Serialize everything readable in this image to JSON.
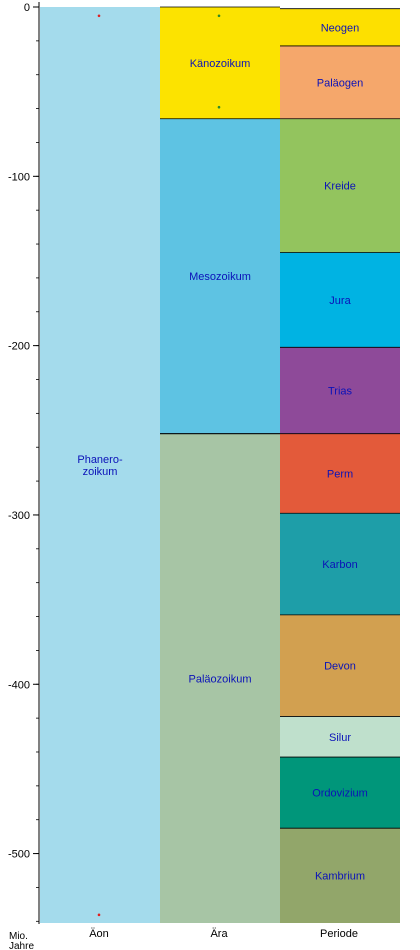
{
  "axis": {
    "ticks": [
      {
        "value": 0,
        "label": "0"
      },
      {
        "value": -100,
        "label": "-100"
      },
      {
        "value": -200,
        "label": "-200"
      },
      {
        "value": -300,
        "label": "-300"
      },
      {
        "value": -400,
        "label": "-400"
      },
      {
        "value": -500,
        "label": "-500"
      }
    ],
    "minor_step": 20,
    "unit_line1": "Mio.",
    "unit_line2": "Jahre",
    "max": 0,
    "min": -541
  },
  "columns": {
    "aeon": "Äon",
    "era": "Ära",
    "period": "Periode"
  },
  "aeons": [
    {
      "name_lines": [
        "Phanero-",
        "zoikum"
      ],
      "start": 0,
      "end": -541,
      "color": "#a4dbec"
    }
  ],
  "eras": [
    {
      "name": "Känozoikum",
      "start": 0,
      "end": -66,
      "color": "#fce300"
    },
    {
      "name": "Mesozoikum",
      "start": -66,
      "end": -252,
      "color": "#5ec3e3"
    },
    {
      "name": "Paläozoikum",
      "start": -252,
      "end": -541,
      "color": "#a7c5a5"
    }
  ],
  "periods": [
    {
      "name": "Neogen",
      "start": -1,
      "end": -23,
      "color": "#fde000"
    },
    {
      "name": "Paläogen",
      "start": -23,
      "end": -66,
      "color": "#f5a76b"
    },
    {
      "name": "Kreide",
      "start": -66,
      "end": -145,
      "color": "#93c45e"
    },
    {
      "name": "Jura",
      "start": -145,
      "end": -201,
      "color": "#00b3e3"
    },
    {
      "name": "Trias",
      "start": -201,
      "end": -252,
      "color": "#8e4a99"
    },
    {
      "name": "Perm",
      "start": -252,
      "end": -299,
      "color": "#e35a3a"
    },
    {
      "name": "Karbon",
      "start": -299,
      "end": -359,
      "color": "#1e9ea8"
    },
    {
      "name": "Devon",
      "start": -359,
      "end": -419,
      "color": "#d2a050"
    },
    {
      "name": "Silur",
      "start": -419,
      "end": -443,
      "color": "#bfe0cc"
    },
    {
      "name": "Ordovizium",
      "start": -443,
      "end": -485,
      "color": "#00967a"
    },
    {
      "name": "Kambrium",
      "start": -485,
      "end": -541,
      "color": "#92a66a"
    }
  ],
  "markers": [
    {
      "column": "aeon",
      "value": -4,
      "color": "#e02020"
    },
    {
      "column": "aeon",
      "value": -535,
      "color": "#e02020"
    },
    {
      "column": "era",
      "value": -4,
      "color": "#2a8a2a"
    },
    {
      "column": "era",
      "value": -58,
      "color": "#2a8a2a"
    }
  ]
}
